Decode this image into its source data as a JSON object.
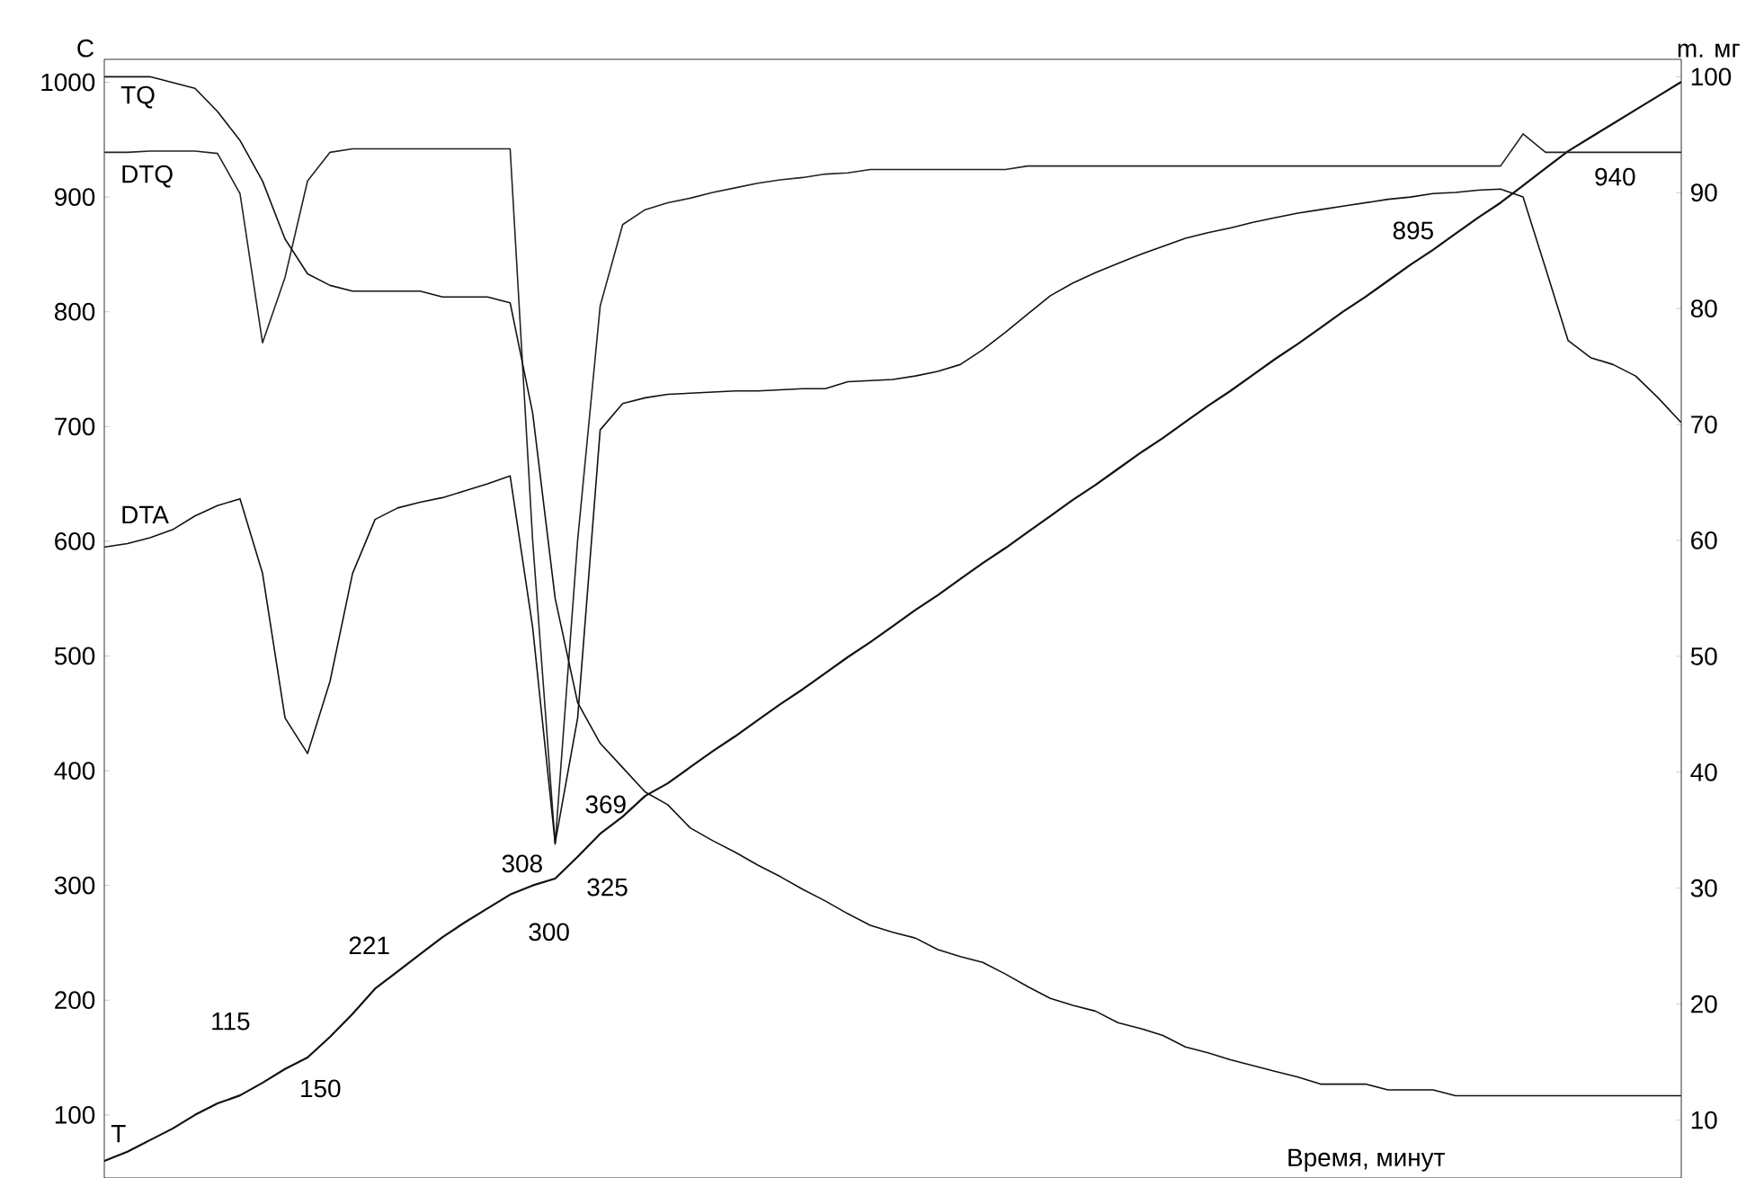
{
  "chart_data": {
    "type": "line",
    "ylabel": "C",
    "y2label": "m. мг",
    "xlabel": "Время, минут",
    "categories": [
      null,
      null,
      null,
      null,
      null,
      null,
      null,
      null,
      null,
      null,
      null,
      null,
      null,
      null,
      null,
      null,
      null,
      null,
      null,
      null,
      null,
      null,
      null,
      null,
      null,
      null,
      null,
      null,
      null,
      null,
      null,
      null,
      null,
      null,
      null,
      null,
      null,
      null,
      null,
      null,
      null,
      null,
      null,
      null,
      null,
      null,
      null,
      null,
      null,
      null,
      null,
      null,
      null,
      null,
      null,
      null,
      null,
      null,
      null,
      null,
      null,
      null,
      null,
      null,
      null,
      null,
      null,
      null,
      null,
      null,
      null
    ],
    "ylim": [
      45,
      1020
    ],
    "yticks": [
      100,
      200,
      300,
      400,
      500,
      600,
      700,
      800,
      900,
      1000
    ],
    "y2lim": [
      5,
      101.5
    ],
    "y2ticks": [
      10,
      20,
      30,
      40,
      50,
      60,
      70,
      80,
      90,
      100
    ],
    "series": [
      {
        "name": "T",
        "color": "#111111",
        "values": [
          60,
          68,
          78,
          88,
          100,
          110,
          117,
          128,
          140,
          150,
          168,
          188,
          210,
          225,
          240,
          255,
          268,
          280,
          292,
          300,
          306,
          325,
          345,
          360,
          378,
          389,
          403,
          417,
          430,
          444,
          458,
          471,
          485,
          499,
          512,
          526,
          540,
          553,
          567,
          581,
          594,
          608,
          622,
          636,
          649,
          663,
          677,
          690,
          704,
          718,
          731,
          745,
          759,
          772,
          786,
          800,
          813,
          827,
          841,
          854,
          868,
          882,
          895,
          910,
          925,
          940,
          952,
          964,
          976,
          988,
          1000
        ]
      },
      {
        "name": "TQ",
        "color": "#111111",
        "axis": "y2",
        "values": [
          100,
          100,
          100,
          99.5,
          99,
          97,
          94.5,
          91,
          86,
          83,
          82,
          81.5,
          81.5,
          81.5,
          81.5,
          81,
          81,
          81,
          80.5,
          71,
          55,
          46,
          42.5,
          40.4,
          38.3,
          37.2,
          35.2,
          34.1,
          33.1,
          32,
          31,
          29.9,
          28.9,
          27.8,
          26.8,
          26.2,
          25.7,
          24.7,
          24.1,
          23.6,
          22.6,
          21.5,
          20.5,
          19.9,
          19.4,
          18.4,
          17.9,
          17.3,
          16.3,
          15.8,
          15.2,
          14.7,
          14.2,
          13.7,
          13.1,
          13.1,
          13.1,
          12.6,
          12.6,
          12.6,
          12.1,
          12.1,
          12.1,
          12.1,
          12.1,
          12.1,
          12.1,
          12.1,
          12.1,
          12.1,
          12.1
        ]
      },
      {
        "name": "DTQ",
        "color": "#222222",
        "values": [
          939,
          939,
          940,
          940,
          940,
          938,
          903,
          773,
          830,
          914,
          939,
          942,
          942,
          942,
          942,
          942,
          942,
          942,
          942,
          601,
          336,
          601,
          805,
          876,
          889,
          895,
          899,
          904,
          908,
          912,
          915,
          917,
          920,
          921,
          924,
          924,
          924,
          924,
          924,
          924,
          924,
          927,
          927,
          927,
          927,
          927,
          927,
          927,
          927,
          927,
          927,
          927,
          927,
          927,
          927,
          927,
          927,
          927,
          927,
          927,
          927,
          927,
          927,
          955,
          939,
          939,
          939,
          939,
          939,
          939,
          939
        ]
      },
      {
        "name": "DTA",
        "color": "#111111",
        "values": [
          595,
          598,
          603,
          610,
          622,
          631,
          637,
          572,
          446,
          415,
          478,
          572,
          619,
          629,
          634,
          638,
          644,
          650,
          657,
          525,
          337,
          446,
          697,
          720,
          725,
          728,
          729,
          730,
          731,
          731,
          732,
          733,
          733,
          739,
          740,
          741,
          744,
          748,
          754,
          767,
          782,
          798,
          814,
          825,
          834,
          842,
          850,
          857,
          864,
          869,
          873,
          878,
          882,
          886,
          889,
          892,
          895,
          898,
          900,
          903,
          904,
          906,
          907,
          900,
          838,
          775,
          760,
          754,
          744,
          725,
          704
        ]
      }
    ],
    "annotations": [
      "115",
      "150",
      "221",
      "300",
      "308",
      "325",
      "369",
      "895",
      "940"
    ]
  }
}
